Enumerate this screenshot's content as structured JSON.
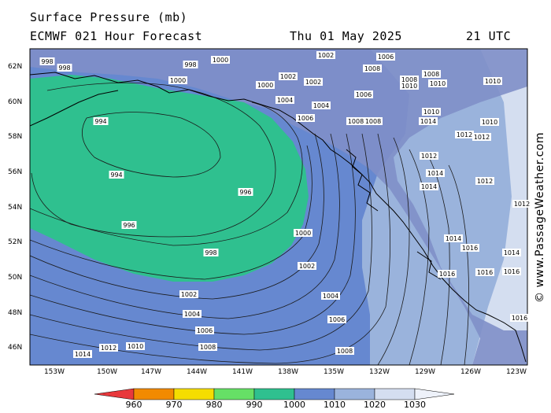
{
  "header": {
    "title": "Surface Pressure (mb)",
    "model": "ECMWF 021 Hour Forecast",
    "date": "Thu 01 May 2025",
    "time": "21 UTC"
  },
  "map": {
    "lat_labels": [
      "62N",
      "60N",
      "58N",
      "56N",
      "54N",
      "52N",
      "50N",
      "48N",
      "46N"
    ],
    "lon_labels": [
      "153W",
      "150W",
      "147W",
      "144W",
      "141W",
      "138W",
      "135W",
      "132W",
      "129W",
      "126W",
      "123W"
    ],
    "isobar_labels": {
      "low_center": [
        "994",
        "994",
        "996",
        "996",
        "998",
        "1000"
      ],
      "gradient": [
        "1002",
        "1004",
        "1006",
        "1008",
        "1010",
        "1012",
        "1014",
        "1016"
      ],
      "coast": [
        "998",
        "1000",
        "1002",
        "1004",
        "1006",
        "1008",
        "1010",
        "1012",
        "1014",
        "1016"
      ]
    },
    "colors": {
      "band_990_1000": "#2fc08f",
      "band_1000_1010": "#6688d0",
      "band_1010_1020": "#9ab3dc",
      "band_1020_1030": "#d4def0",
      "land": "#7f8fc8"
    }
  },
  "colorbar": {
    "values": [
      "960",
      "970",
      "980",
      "990",
      "1000",
      "1010",
      "1020",
      "1030"
    ],
    "colors": [
      "#e8383c",
      "#f28a00",
      "#f5dd00",
      "#66e066",
      "#2fc08f",
      "#6688d0",
      "#9ab3dc",
      "#d4def0"
    ]
  },
  "credit": "© www.PassageWeather.com"
}
